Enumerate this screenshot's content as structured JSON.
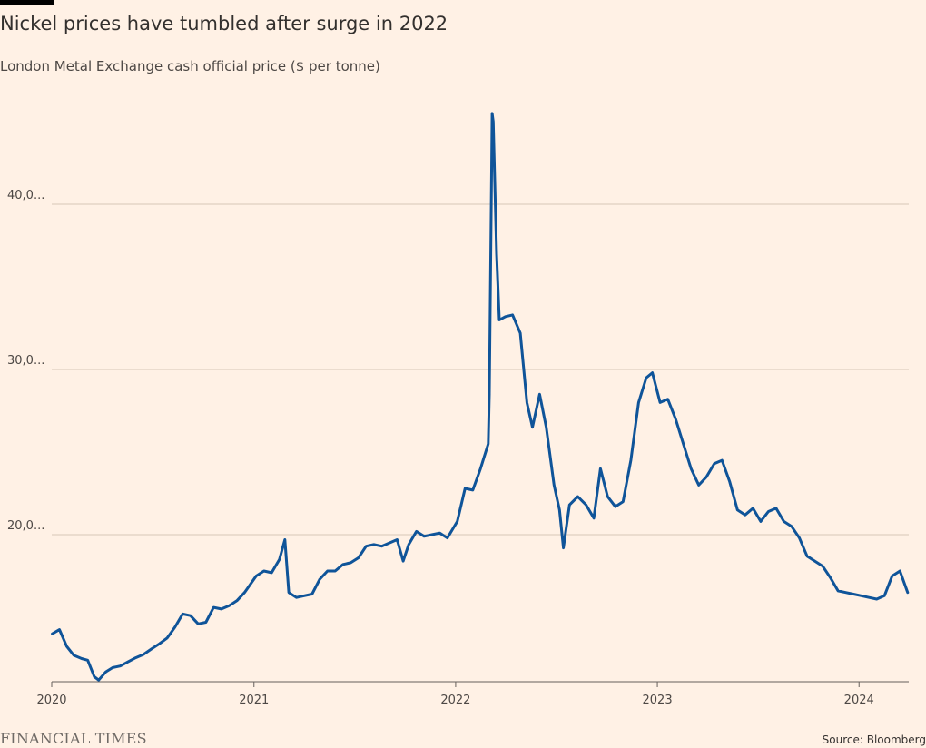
{
  "header": {
    "title": "Nickel prices have tumbled after surge in 2022",
    "subtitle": "London Metal Exchange cash official price ($ per tonne)"
  },
  "footer": {
    "logo": "FINANCIAL TIMES",
    "source": "Source: Bloomberg"
  },
  "colors": {
    "background": "#fff1e5",
    "line": "#0f5499",
    "gridline": "#d7c8b8",
    "text": "#33302e"
  },
  "chart_data": {
    "type": "line",
    "title": "Nickel prices have tumbled after surge in 2022",
    "subtitle": "London Metal Exchange cash official price ($ per tonne)",
    "xlabel": "",
    "ylabel": "",
    "ylim": [
      11000,
      45500
    ],
    "xlim": [
      "2020-01-01",
      "2024-03-31"
    ],
    "grid": true,
    "y_ticks": [
      {
        "value": 20000,
        "label": "20,0..."
      },
      {
        "value": 30000,
        "label": "30,0..."
      },
      {
        "value": 40000,
        "label": "40,0..."
      }
    ],
    "x_ticks": [
      {
        "value": "2020-01-01",
        "label": "2020"
      },
      {
        "value": "2021-01-01",
        "label": "2021"
      },
      {
        "value": "2022-01-01",
        "label": "2022"
      },
      {
        "value": "2023-01-01",
        "label": "2023"
      },
      {
        "value": "2024-01-01",
        "label": "2024"
      }
    ],
    "series": [
      {
        "points": [
          [
            "2020-01-02",
            14000
          ],
          [
            "2020-01-15",
            14250
          ],
          [
            "2020-01-28",
            13250
          ],
          [
            "2020-02-10",
            12700
          ],
          [
            "2020-02-24",
            12500
          ],
          [
            "2020-03-06",
            12400
          ],
          [
            "2020-03-18",
            11400
          ],
          [
            "2020-03-26",
            11200
          ],
          [
            "2020-04-08",
            11700
          ],
          [
            "2020-04-20",
            11950
          ],
          [
            "2020-05-04",
            12050
          ],
          [
            "2020-05-18",
            12300
          ],
          [
            "2020-06-01",
            12550
          ],
          [
            "2020-06-15",
            12750
          ],
          [
            "2020-06-30",
            13100
          ],
          [
            "2020-07-14",
            13400
          ],
          [
            "2020-07-28",
            13750
          ],
          [
            "2020-08-11",
            14400
          ],
          [
            "2020-08-25",
            15200
          ],
          [
            "2020-09-08",
            15100
          ],
          [
            "2020-09-22",
            14600
          ],
          [
            "2020-10-06",
            14700
          ],
          [
            "2020-10-20",
            15600
          ],
          [
            "2020-11-03",
            15500
          ],
          [
            "2020-11-17",
            15700
          ],
          [
            "2020-12-01",
            16000
          ],
          [
            "2020-12-15",
            16500
          ],
          [
            "2021-01-05",
            17500
          ],
          [
            "2021-01-19",
            17800
          ],
          [
            "2021-02-02",
            17700
          ],
          [
            "2021-02-16",
            18500
          ],
          [
            "2021-02-26",
            19700
          ],
          [
            "2021-03-05",
            16500
          ],
          [
            "2021-03-19",
            16200
          ],
          [
            "2021-04-02",
            16300
          ],
          [
            "2021-04-16",
            16400
          ],
          [
            "2021-04-30",
            17300
          ],
          [
            "2021-05-14",
            17800
          ],
          [
            "2021-05-28",
            17800
          ],
          [
            "2021-06-11",
            18200
          ],
          [
            "2021-06-25",
            18300
          ],
          [
            "2021-07-09",
            18600
          ],
          [
            "2021-07-23",
            19300
          ],
          [
            "2021-08-06",
            19400
          ],
          [
            "2021-08-20",
            19300
          ],
          [
            "2021-09-03",
            19500
          ],
          [
            "2021-09-17",
            19700
          ],
          [
            "2021-09-28",
            18400
          ],
          [
            "2021-10-08",
            19400
          ],
          [
            "2021-10-22",
            20200
          ],
          [
            "2021-11-05",
            19900
          ],
          [
            "2021-11-19",
            20000
          ],
          [
            "2021-12-03",
            20100
          ],
          [
            "2021-12-17",
            19800
          ],
          [
            "2022-01-04",
            20800
          ],
          [
            "2022-01-18",
            22800
          ],
          [
            "2022-02-01",
            22700
          ],
          [
            "2022-02-15",
            24000
          ],
          [
            "2022-03-01",
            25500
          ],
          [
            "2022-03-03",
            28500
          ],
          [
            "2022-03-07",
            42000
          ],
          [
            "2022-03-08",
            45500
          ],
          [
            "2022-03-10",
            45000
          ],
          [
            "2022-03-16",
            37000
          ],
          [
            "2022-03-21",
            33000
          ],
          [
            "2022-04-01",
            33200
          ],
          [
            "2022-04-14",
            33300
          ],
          [
            "2022-04-28",
            32200
          ],
          [
            "2022-05-10",
            28000
          ],
          [
            "2022-05-20",
            26500
          ],
          [
            "2022-06-02",
            28500
          ],
          [
            "2022-06-14",
            26500
          ],
          [
            "2022-06-28",
            23000
          ],
          [
            "2022-07-08",
            21500
          ],
          [
            "2022-07-15",
            19200
          ],
          [
            "2022-07-26",
            21800
          ],
          [
            "2022-08-10",
            22300
          ],
          [
            "2022-08-25",
            21800
          ],
          [
            "2022-09-08",
            21000
          ],
          [
            "2022-09-20",
            24000
          ],
          [
            "2022-10-03",
            22300
          ],
          [
            "2022-10-17",
            21700
          ],
          [
            "2022-10-31",
            22000
          ],
          [
            "2022-11-14",
            24500
          ],
          [
            "2022-11-28",
            28000
          ],
          [
            "2022-12-12",
            29500
          ],
          [
            "2022-12-23",
            29800
          ],
          [
            "2023-01-06",
            28000
          ],
          [
            "2023-01-20",
            28200
          ],
          [
            "2023-02-03",
            27000
          ],
          [
            "2023-02-17",
            25500
          ],
          [
            "2023-03-03",
            24000
          ],
          [
            "2023-03-17",
            23000
          ],
          [
            "2023-03-31",
            23500
          ],
          [
            "2023-04-14",
            24300
          ],
          [
            "2023-04-28",
            24500
          ],
          [
            "2023-05-12",
            23200
          ],
          [
            "2023-05-26",
            21500
          ],
          [
            "2023-06-09",
            21200
          ],
          [
            "2023-06-23",
            21600
          ],
          [
            "2023-07-07",
            20800
          ],
          [
            "2023-07-21",
            21400
          ],
          [
            "2023-08-04",
            21600
          ],
          [
            "2023-08-18",
            20800
          ],
          [
            "2023-09-01",
            20500
          ],
          [
            "2023-09-15",
            19800
          ],
          [
            "2023-09-29",
            18700
          ],
          [
            "2023-10-13",
            18400
          ],
          [
            "2023-10-27",
            18100
          ],
          [
            "2023-11-10",
            17400
          ],
          [
            "2023-11-24",
            16600
          ],
          [
            "2023-12-08",
            16500
          ],
          [
            "2023-12-22",
            16400
          ],
          [
            "2024-01-05",
            16300
          ],
          [
            "2024-01-19",
            16200
          ],
          [
            "2024-02-02",
            16100
          ],
          [
            "2024-02-16",
            16300
          ],
          [
            "2024-03-01",
            17500
          ],
          [
            "2024-03-15",
            17800
          ],
          [
            "2024-03-29",
            16500
          ]
        ]
      }
    ]
  }
}
